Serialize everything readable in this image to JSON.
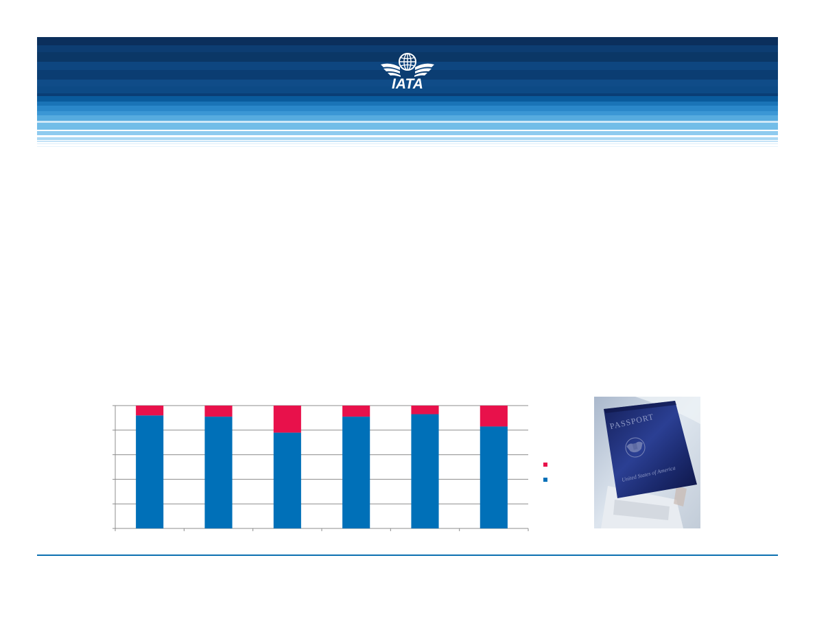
{
  "brand": {
    "logo_text": "IATA",
    "colors": {
      "banner_dark": "#0b3766",
      "banner_mid": "#0a5b9c",
      "banner_light": "#8fcbef",
      "footer_rule": "#0a6fb0"
    }
  },
  "chart_data": {
    "type": "bar",
    "stacked": true,
    "categories": [
      "",
      "",
      "",
      "",
      "",
      ""
    ],
    "series": [
      {
        "color": "#0070b8",
        "values": [
          92,
          91,
          78,
          91,
          93,
          83
        ]
      },
      {
        "color": "#e8114b",
        "values": [
          8,
          9,
          22,
          9,
          7,
          17
        ]
      }
    ],
    "ylim": [
      0,
      100
    ],
    "ytick_values": [
      0,
      20,
      40,
      60,
      80,
      100
    ],
    "grid": true,
    "legend_placement": "right"
  },
  "photo": {
    "passport_text": "PASSPORT",
    "country_text": "United States of America"
  }
}
